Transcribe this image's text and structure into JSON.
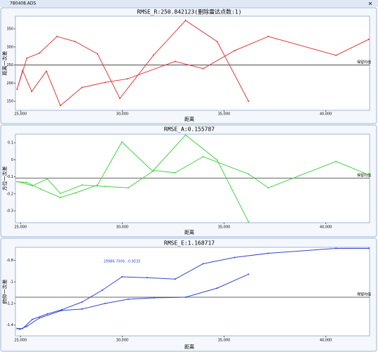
{
  "window": {
    "title": "780408.ADS",
    "close": "×"
  },
  "chart_data": [
    {
      "type": "line",
      "title": "RMSE_R:250.842123(删除雷达点数:1)",
      "x_label": "距离",
      "y_label": "距离一次差",
      "color": "#e03a3a",
      "x": [
        36200,
        34660,
        33110,
        31530,
        29880,
        28780,
        27680,
        26790,
        25930,
        25310,
        24830,
        25100,
        25550,
        26270,
        26960,
        28020,
        29160,
        30260,
        32600,
        33970,
        35520,
        37170,
        40500,
        42110
      ],
      "values": [
        150,
        315,
        373,
        277,
        158,
        281,
        315,
        329,
        283,
        269,
        183,
        235,
        177,
        233,
        138,
        188,
        202,
        212,
        260,
        240,
        290,
        329,
        277,
        321
      ],
      "xlim": [
        24750,
        42150
      ],
      "xticks": [
        {
          "value": 25000,
          "label": "25,000"
        },
        {
          "value": 30000,
          "label": "30,000"
        },
        {
          "value": 35000,
          "label": "35,000"
        },
        {
          "value": 40000,
          "label": "40,000"
        }
      ],
      "ylim": [
        125,
        385
      ],
      "yticks": [
        150,
        200,
        250,
        300,
        350
      ],
      "reference_value": 250,
      "reference_label": "保留均值"
    },
    {
      "type": "line",
      "title": "RMSE_A:0.155787",
      "x_label": "距离",
      "y_label": "方位一次差",
      "color": "#44d444",
      "x": [
        36200,
        34660,
        33110,
        31490,
        29980,
        28780,
        27710,
        26960,
        26000,
        25310,
        24830,
        25030,
        25580,
        26310,
        26960,
        28020,
        29160,
        30290,
        31560,
        32600,
        33970,
        36200,
        37170,
        40500,
        42110
      ],
      "values": [
        -0.365,
        -0.002,
        0.145,
        -0.067,
        0.104,
        -0.149,
        -0.194,
        -0.222,
        -0.173,
        -0.133,
        -0.129,
        -0.133,
        -0.153,
        -0.112,
        -0.198,
        -0.149,
        -0.157,
        -0.165,
        -0.063,
        -0.076,
        0.018,
        -0.084,
        -0.165,
        -0.01,
        -0.088
      ],
      "xlim": [
        24750,
        42150
      ],
      "xticks": [
        {
          "value": 25000,
          "label": "25,000"
        },
        {
          "value": 30000,
          "label": "30,000"
        },
        {
          "value": 35000,
          "label": "35,000"
        },
        {
          "value": 40000,
          "label": "40,000"
        }
      ],
      "ylim": [
        -0.37,
        0.15
      ],
      "yticks": [
        0.1,
        0,
        -0.1,
        -0.2,
        -0.3
      ],
      "reference_value": -0.108,
      "reference_label": "保留均值"
    },
    {
      "type": "line",
      "title": "RMSE_E:1.168717",
      "x_label": "距离",
      "y_label": "俯仰一次差",
      "color": "#3444d4",
      "x": [
        36200,
        34660,
        33110,
        31560,
        30290,
        29160,
        28020,
        27020,
        25930,
        25310,
        24970,
        24830,
        25100,
        25580,
        26310,
        27030,
        28020,
        29020,
        29986.7,
        31220,
        32600,
        33970,
        35520,
        37170,
        40500,
        42110
      ],
      "values": [
        -0.929,
        -1.058,
        -1.142,
        -1.148,
        -1.161,
        -1.2,
        -1.252,
        -1.265,
        -1.335,
        -1.413,
        -1.439,
        -1.432,
        -1.432,
        -1.348,
        -1.297,
        -1.258,
        -1.187,
        -1.077,
        -0.9535,
        -0.961,
        -0.974,
        -0.832,
        -0.774,
        -0.735,
        -0.69,
        -0.69
      ],
      "xlim": [
        24750,
        42150
      ],
      "xticks": [
        {
          "value": 25000,
          "label": "25,000"
        },
        {
          "value": 30000,
          "label": "30,000"
        },
        {
          "value": 35000,
          "label": "35,000"
        },
        {
          "value": 40000,
          "label": "40,000"
        }
      ],
      "ylim": [
        -1.5,
        -0.68
      ],
      "yticks": [
        -0.8,
        -1,
        -1.2,
        -1.4
      ],
      "reference_value": -1.142,
      "reference_label": "保留均值",
      "annotation": {
        "text": "29986.7000, -0.9535",
        "x": 29986.7,
        "y": -0.9535
      }
    }
  ]
}
